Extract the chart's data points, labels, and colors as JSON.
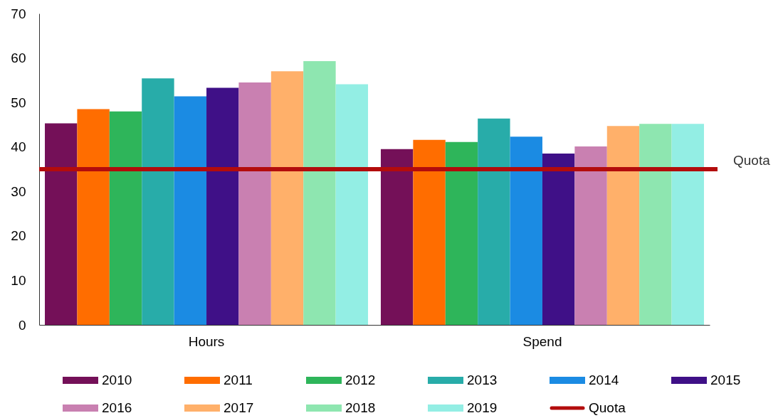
{
  "chart_data": {
    "type": "bar",
    "categories": [
      "Hours",
      "Spend"
    ],
    "series": [
      {
        "name": "2010",
        "color": "#741058",
        "values": [
          45.3,
          39.5
        ]
      },
      {
        "name": "2011",
        "color": "#ff6d00",
        "values": [
          48.5,
          41.6
        ]
      },
      {
        "name": "2012",
        "color": "#2eb55a",
        "values": [
          48.0,
          41.1
        ]
      },
      {
        "name": "2013",
        "color": "#28aca9",
        "values": [
          55.4,
          46.4
        ]
      },
      {
        "name": "2014",
        "color": "#1b8be3",
        "values": [
          51.4,
          42.3
        ]
      },
      {
        "name": "2015",
        "color": "#3f1087",
        "values": [
          53.3,
          38.5
        ]
      },
      {
        "name": "2016",
        "color": "#c980b1",
        "values": [
          54.5,
          40.1
        ]
      },
      {
        "name": "2017",
        "color": "#ffb06a",
        "values": [
          57.0,
          44.7
        ]
      },
      {
        "name": "2018",
        "color": "#8ee6b0",
        "values": [
          59.3,
          45.2
        ]
      },
      {
        "name": "2019",
        "color": "#93eee4",
        "values": [
          54.1,
          45.2
        ]
      }
    ],
    "ref_lines": [
      {
        "axis": "y",
        "value": 35,
        "label": "Quota",
        "color": "#b30c0c",
        "line_style": "solid"
      }
    ],
    "ylim": [
      0,
      70
    ],
    "yticks": [
      0,
      10,
      20,
      30,
      40,
      50,
      60,
      70
    ],
    "grid": false,
    "legend": "bottom"
  }
}
